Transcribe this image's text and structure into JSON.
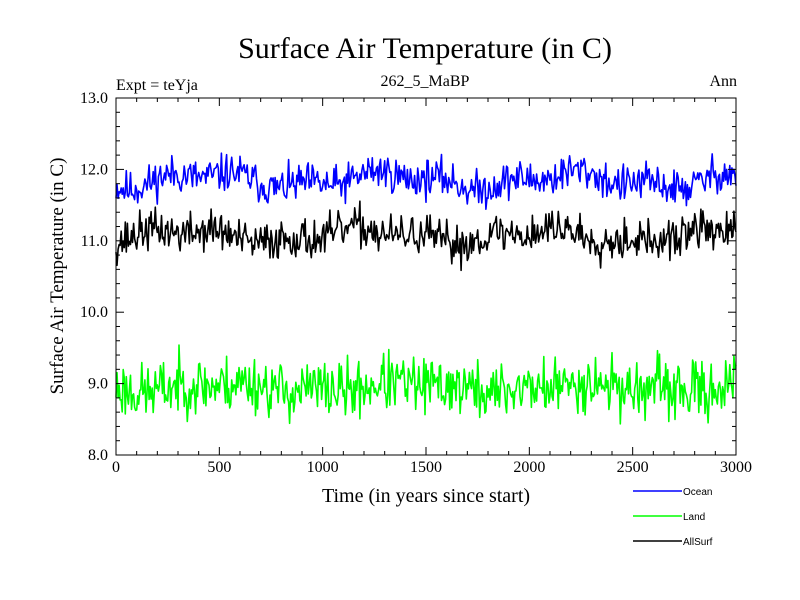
{
  "chart_data": {
    "type": "line",
    "title": "Surface Air Temperature (in C)",
    "subtitle_left": "Expt = teYja",
    "subtitle_center": "262_5_MaBP",
    "subtitle_right": "Ann",
    "xlabel": "Time (in years since start)",
    "ylabel": "Surface Air Temperature (in C)",
    "xlim": [
      0,
      3000
    ],
    "ylim": [
      8.0,
      13.0
    ],
    "xticks": [
      0,
      500,
      1000,
      1500,
      2000,
      2500,
      3000
    ],
    "xtick_labels": [
      "0",
      "500",
      "1000",
      "1500",
      "2000",
      "2500",
      "3000"
    ],
    "yticks": [
      8.0,
      9.0,
      10.0,
      11.0,
      12.0,
      13.0
    ],
    "ytick_labels": [
      "8.0",
      "9.0",
      "10.0",
      "11.0",
      "12.0",
      "13.0"
    ],
    "x_step": 5,
    "series": [
      {
        "name": "Ocean",
        "color": "#0000ff",
        "mean": 11.85,
        "noise": 0.13,
        "slow": 0.09,
        "seed": 11
      },
      {
        "name": "Land",
        "color": "#00ff00",
        "mean": 8.95,
        "noise": 0.2,
        "slow": 0.05,
        "seed": 23
      },
      {
        "name": "AllSurf",
        "color": "#000000",
        "mean": 11.07,
        "noise": 0.14,
        "slow": 0.08,
        "seed": 37
      }
    ],
    "legend": {
      "placement": "bottom-right",
      "entries": [
        "Ocean",
        "Land",
        "AllSurf"
      ]
    }
  }
}
